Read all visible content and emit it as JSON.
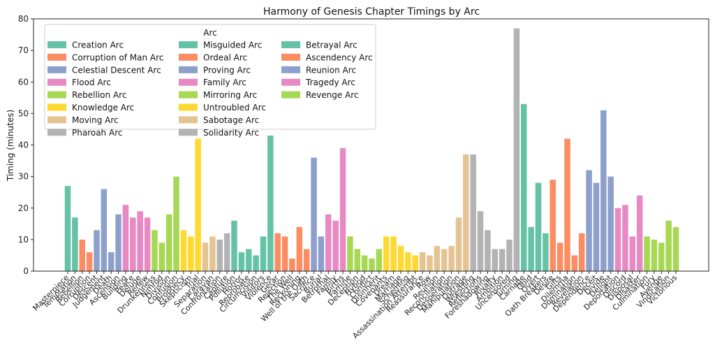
{
  "chart_data": {
    "type": "bar",
    "title": "Harmony of Genesis Chapter Timings by Arc",
    "xlabel": "",
    "ylabel": "Timing (minutes)",
    "ylim": [
      0,
      80
    ],
    "yticks": [
      0,
      10,
      20,
      30,
      40,
      50,
      60,
      70,
      80
    ],
    "legend_title": "Arc",
    "legend_position": "top-left",
    "arcs": [
      {
        "name": "Creation Arc",
        "color": "#66c2a5"
      },
      {
        "name": "Corruption of Man Arc",
        "color": "#fc8d62"
      },
      {
        "name": "Celestial Descent Arc",
        "color": "#8da0cb"
      },
      {
        "name": "Flood Arc",
        "color": "#e78ac3"
      },
      {
        "name": "Rebellion Arc",
        "color": "#a6d854"
      },
      {
        "name": "Knowledge Arc",
        "color": "#ffd92f"
      },
      {
        "name": "Moving Arc",
        "color": "#e5c494"
      },
      {
        "name": "Pharoah Arc",
        "color": "#b3b3b3"
      },
      {
        "name": "Misguided Arc",
        "color": "#66c2a5"
      },
      {
        "name": "Ordeal Arc",
        "color": "#fc8d62"
      },
      {
        "name": "Proving Arc",
        "color": "#8da0cb"
      },
      {
        "name": "Family Arc",
        "color": "#e78ac3"
      },
      {
        "name": "Mirroring Arc",
        "color": "#a6d854"
      },
      {
        "name": "Untroubled Arc",
        "color": "#ffd92f"
      },
      {
        "name": "Sabotage Arc",
        "color": "#e5c494"
      },
      {
        "name": "Solidarity Arc",
        "color": "#b3b3b3"
      },
      {
        "name": "Betrayal Arc",
        "color": "#66c2a5"
      },
      {
        "name": "Ascendency Arc",
        "color": "#fc8d62"
      },
      {
        "name": "Reunion Arc",
        "color": "#8da0cb"
      },
      {
        "name": "Tragedy Arc",
        "color": "#e78ac3"
      },
      {
        "name": "Revenge Arc",
        "color": "#a6d854"
      }
    ],
    "bars": [
      {
        "label": "Masterpiece",
        "value": 27,
        "arc": 0
      },
      {
        "label": "Temptation",
        "value": 17,
        "arc": 0
      },
      {
        "label": "Rebellion",
        "value": 10,
        "arc": 1
      },
      {
        "label": "Corruption",
        "value": 6,
        "arc": 1
      },
      {
        "label": "Descent",
        "value": 13,
        "arc": 2
      },
      {
        "label": "Judgement",
        "value": 26,
        "arc": 2
      },
      {
        "label": "Death",
        "value": 6,
        "arc": 2
      },
      {
        "label": "Ascension",
        "value": 18,
        "arc": 2
      },
      {
        "label": "Building",
        "value": 21,
        "arc": 3
      },
      {
        "label": "Peace",
        "value": 17,
        "arc": 3
      },
      {
        "label": "Deluge",
        "value": 19,
        "arc": 3
      },
      {
        "label": "Renew",
        "value": 17,
        "arc": 3
      },
      {
        "label": "Drunkenness",
        "value": 13,
        "arc": 4
      },
      {
        "label": "Nimrod",
        "value": 9,
        "arc": 4
      },
      {
        "label": "Division",
        "value": 18,
        "arc": 4
      },
      {
        "label": "Confusion",
        "value": 30,
        "arc": 4
      },
      {
        "label": "Prophecy",
        "value": 13,
        "arc": 5
      },
      {
        "label": "Skepticism",
        "value": 11,
        "arc": 5
      },
      {
        "label": "Trial",
        "value": 42,
        "arc": 5
      },
      {
        "label": "Separation",
        "value": 9,
        "arc": 6
      },
      {
        "label": "Caravan",
        "value": 11,
        "arc": 6
      },
      {
        "label": "Confrontation",
        "value": 10,
        "arc": 7
      },
      {
        "label": "Capture",
        "value": 12,
        "arc": 7
      },
      {
        "label": "Pollution",
        "value": 16,
        "arc": 8
      },
      {
        "label": "Horror",
        "value": 6,
        "arc": 8
      },
      {
        "label": "Reprobate",
        "value": 7,
        "arc": 8
      },
      {
        "label": "Circumcision",
        "value": 5,
        "arc": 8
      },
      {
        "label": "Visitors",
        "value": 11,
        "arc": 8
      },
      {
        "label": "Violence",
        "value": 43,
        "arc": 8
      },
      {
        "label": "Gerar",
        "value": 12,
        "arc": 9
      },
      {
        "label": "Rejection",
        "value": 11,
        "arc": 9
      },
      {
        "label": "The Well",
        "value": 4,
        "arc": 9
      },
      {
        "label": "Reckoning",
        "value": 14,
        "arc": 9
      },
      {
        "label": "Well of the Oath",
        "value": 7,
        "arc": 9
      },
      {
        "label": "Sacrifice",
        "value": 36,
        "arc": 10
      },
      {
        "label": "Burial",
        "value": 11,
        "arc": 10
      },
      {
        "label": "Betrothal",
        "value": 18,
        "arc": 11
      },
      {
        "label": "Family",
        "value": 16,
        "arc": 11
      },
      {
        "label": "Births",
        "value": 39,
        "arc": 11
      },
      {
        "label": "Famine",
        "value": 11,
        "arc": 12
      },
      {
        "label": "Deception",
        "value": 7,
        "arc": 12
      },
      {
        "label": "Hybrid",
        "value": 5,
        "arc": 12
      },
      {
        "label": "Conflict",
        "value": 4,
        "arc": 12
      },
      {
        "label": "Disinherit",
        "value": 7,
        "arc": 12
      },
      {
        "label": "Covenants",
        "value": 11,
        "arc": 13
      },
      {
        "label": "Dream",
        "value": 11,
        "arc": 13
      },
      {
        "label": "Marriage",
        "value": 8,
        "arc": 13
      },
      {
        "label": "Scheming",
        "value": 6,
        "arc": 13
      },
      {
        "label": "Assassination Attempt",
        "value": 5,
        "arc": 13
      },
      {
        "label": "Reassurance",
        "value": 6,
        "arc": 14
      },
      {
        "label": "Row",
        "value": 5,
        "arc": 14
      },
      {
        "label": "Reunion",
        "value": 8,
        "arc": 14
      },
      {
        "label": "Reconciliation",
        "value": 7,
        "arc": 14
      },
      {
        "label": "Desperation",
        "value": 8,
        "arc": 14
      },
      {
        "label": "Manipulation",
        "value": 17,
        "arc": 14
      },
      {
        "label": "Outrage",
        "value": 37,
        "arc": 14
      },
      {
        "label": "Wrestling",
        "value": 37,
        "arc": 15
      },
      {
        "label": "Reflections",
        "value": 19,
        "arc": 15
      },
      {
        "label": "Foreshadowing",
        "value": 13,
        "arc": 15
      },
      {
        "label": "Rivalry",
        "value": 7,
        "arc": 15
      },
      {
        "label": "Ambition",
        "value": 7,
        "arc": 15
      },
      {
        "label": "Uncensored",
        "value": 10,
        "arc": 15
      },
      {
        "label": "Turning",
        "value": 77,
        "arc": 15
      },
      {
        "label": "Carnage",
        "value": 53,
        "arc": 16
      },
      {
        "label": "Gold",
        "value": 14,
        "arc": 16
      },
      {
        "label": "Overt",
        "value": 28,
        "arc": 16
      },
      {
        "label": "Oath Breakers",
        "value": 12,
        "arc": 16
      },
      {
        "label": "Desire",
        "value": 29,
        "arc": 17
      },
      {
        "label": "Gifts",
        "value": 9,
        "arc": 17
      },
      {
        "label": "Dilemma",
        "value": 42,
        "arc": 17
      },
      {
        "label": "Domination",
        "value": 5,
        "arc": 17
      },
      {
        "label": "Revelation",
        "value": 12,
        "arc": 17
      },
      {
        "label": "Dependence",
        "value": 32,
        "arc": 18
      },
      {
        "label": "Deceit",
        "value": 28,
        "arc": 18
      },
      {
        "label": "Divide",
        "value": 51,
        "arc": 18
      },
      {
        "label": "Delight",
        "value": 30,
        "arc": 18
      },
      {
        "label": "Deportation",
        "value": 20,
        "arc": 19
      },
      {
        "label": "Discord",
        "value": 21,
        "arc": 19
      },
      {
        "label": "Disposal",
        "value": 11,
        "arc": 19
      },
      {
        "label": "Disaster",
        "value": 24,
        "arc": 19
      },
      {
        "label": "Culmination",
        "value": 11,
        "arc": 20
      },
      {
        "label": "Fury",
        "value": 10,
        "arc": 20
      },
      {
        "label": "Avenge",
        "value": 9,
        "arc": 20
      },
      {
        "label": "Vindication",
        "value": 16,
        "arc": 20
      },
      {
        "label": "Victorious",
        "value": 14,
        "arc": 20
      }
    ]
  }
}
